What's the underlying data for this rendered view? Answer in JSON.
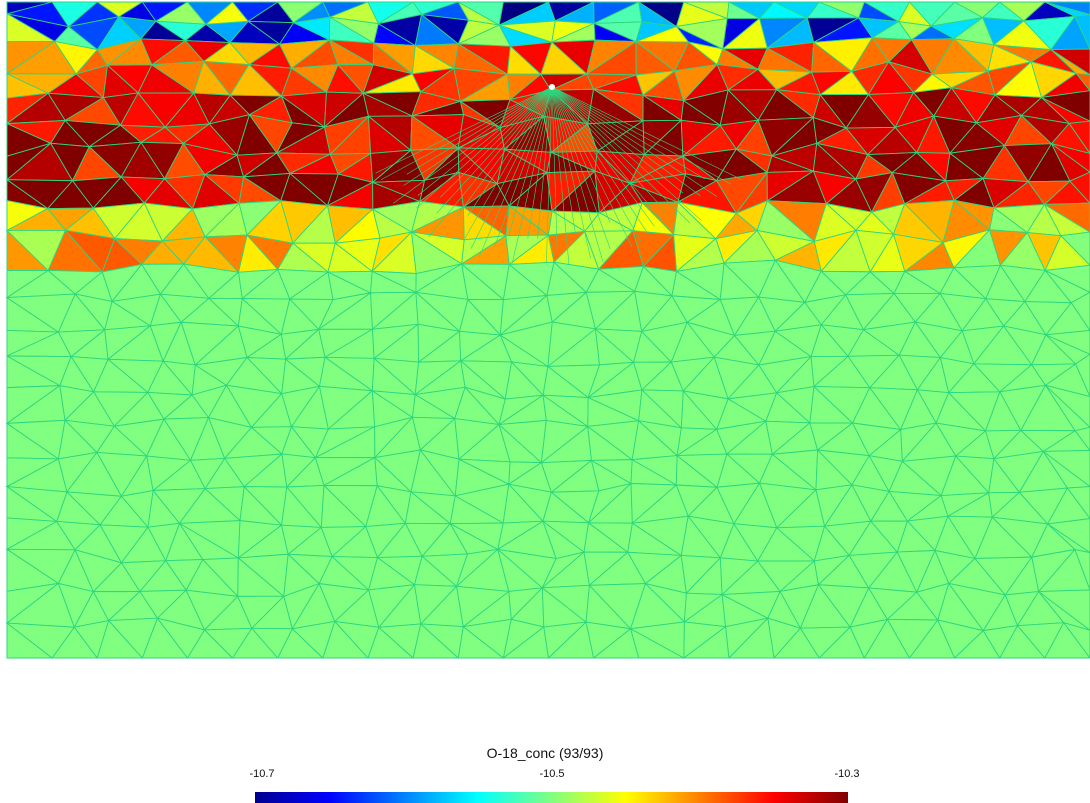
{
  "chart_data": {
    "type": "heatmap",
    "description_kind": "triangulated mesh colored by concentration",
    "colormap": "jet",
    "value_range": [
      -10.7,
      -10.3
    ],
    "background_value": -10.5,
    "near_surface_layer_pattern": [
      {
        "band": "top",
        "dominant_value": -10.65,
        "colors": [
          "#00008f",
          "#0000ff",
          "#00ffff"
        ]
      },
      {
        "band": "upper",
        "dominant_value": -10.4,
        "colors": [
          "#ffd000",
          "#ff8000"
        ]
      },
      {
        "band": "middle",
        "dominant_value": -10.3,
        "colors": [
          "#800000",
          "#c00000",
          "#ff0000"
        ]
      },
      {
        "band": "lower",
        "dominant_value": -10.42,
        "colors": [
          "#ff3000",
          "#ffa000",
          "#ffff00"
        ]
      },
      {
        "band": "deep",
        "dominant_value": -10.5,
        "colors": [
          "#80ff80"
        ]
      }
    ],
    "mesh_line_color": "#2dd67e",
    "well_marker": true
  },
  "legend": {
    "title": "O-18_conc (93/93)",
    "tick_min": "-10.7",
    "tick_mid": "-10.5",
    "tick_max": "-10.3"
  }
}
